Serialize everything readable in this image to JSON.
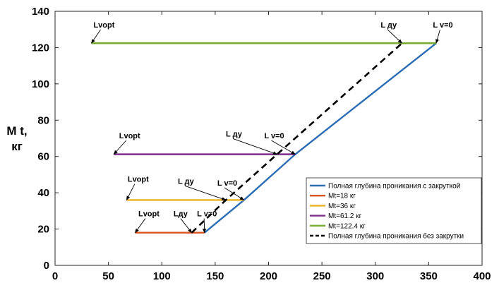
{
  "chart_data": {
    "type": "line",
    "ylabel_lines": [
      "M t,",
      "кг"
    ],
    "xlim": [
      0,
      400
    ],
    "ylim": [
      0,
      140
    ],
    "xticks": [
      0,
      50,
      100,
      150,
      200,
      250,
      300,
      350,
      400
    ],
    "yticks": [
      0,
      20,
      40,
      60,
      80,
      100,
      120,
      140
    ],
    "grid": false,
    "legend_position": "lower-right",
    "series": [
      {
        "name": "Полная глубина проникания с закруткой",
        "color": "#2a6db5",
        "style": "solid",
        "x": [
          140,
          177,
          225,
          357
        ],
        "y": [
          18,
          36,
          61.2,
          122.4
        ]
      },
      {
        "name": "Mt=18 кг",
        "color": "#d9531e",
        "style": "solid",
        "x": [
          75,
          140
        ],
        "y": [
          18,
          18
        ]
      },
      {
        "name": "Mt=36 кг",
        "color": "#edb120",
        "style": "solid",
        "x": [
          67,
          177
        ],
        "y": [
          36,
          36
        ]
      },
      {
        "name": "Mt=61.2 кг",
        "color": "#7e2f8e",
        "style": "solid",
        "x": [
          55,
          225
        ],
        "y": [
          61.2,
          61.2
        ]
      },
      {
        "name": "Mt=122.4 кг",
        "color": "#77ac30",
        "style": "solid",
        "x": [
          34,
          357
        ],
        "y": [
          122.4,
          122.4
        ]
      },
      {
        "name": "Полная глубина проникания без закрутки",
        "color": "#000000",
        "style": "dashed",
        "x": [
          128,
          160,
          208,
          325
        ],
        "y": [
          18,
          36,
          61.2,
          122.4
        ]
      }
    ],
    "annotations": [
      {
        "text": "Lvopt",
        "label_x": 36,
        "label_y": 131,
        "to_x": 34,
        "to_y": 122.4
      },
      {
        "text": "L ду",
        "label_x": 305,
        "label_y": 131,
        "to_x": 325,
        "to_y": 122.4
      },
      {
        "text": "L v=0",
        "label_x": 354,
        "label_y": 131,
        "to_x": 357,
        "to_y": 122.4
      },
      {
        "text": "Lvopt",
        "label_x": 60,
        "label_y": 70,
        "to_x": 55,
        "to_y": 61.2
      },
      {
        "text": "L ду",
        "label_x": 160,
        "label_y": 71,
        "to_x": 208,
        "to_y": 61.2
      },
      {
        "text": "L v=0",
        "label_x": 196,
        "label_y": 70,
        "to_x": 225,
        "to_y": 61.2
      },
      {
        "text": "Lvopt",
        "label_x": 68,
        "label_y": 46,
        "to_x": 67,
        "to_y": 36
      },
      {
        "text": "L ду",
        "label_x": 115,
        "label_y": 45,
        "to_x": 160,
        "to_y": 36
      },
      {
        "text": "L v=0",
        "label_x": 152,
        "label_y": 44,
        "to_x": 177,
        "to_y": 36
      },
      {
        "text": "Lvopt",
        "label_x": 78,
        "label_y": 27,
        "to_x": 75,
        "to_y": 18
      },
      {
        "text": "Lду",
        "label_x": 111,
        "label_y": 27,
        "to_x": 128,
        "to_y": 18
      },
      {
        "text": "L v=0",
        "label_x": 133,
        "label_y": 27,
        "to_x": 140,
        "to_y": 18
      }
    ]
  }
}
